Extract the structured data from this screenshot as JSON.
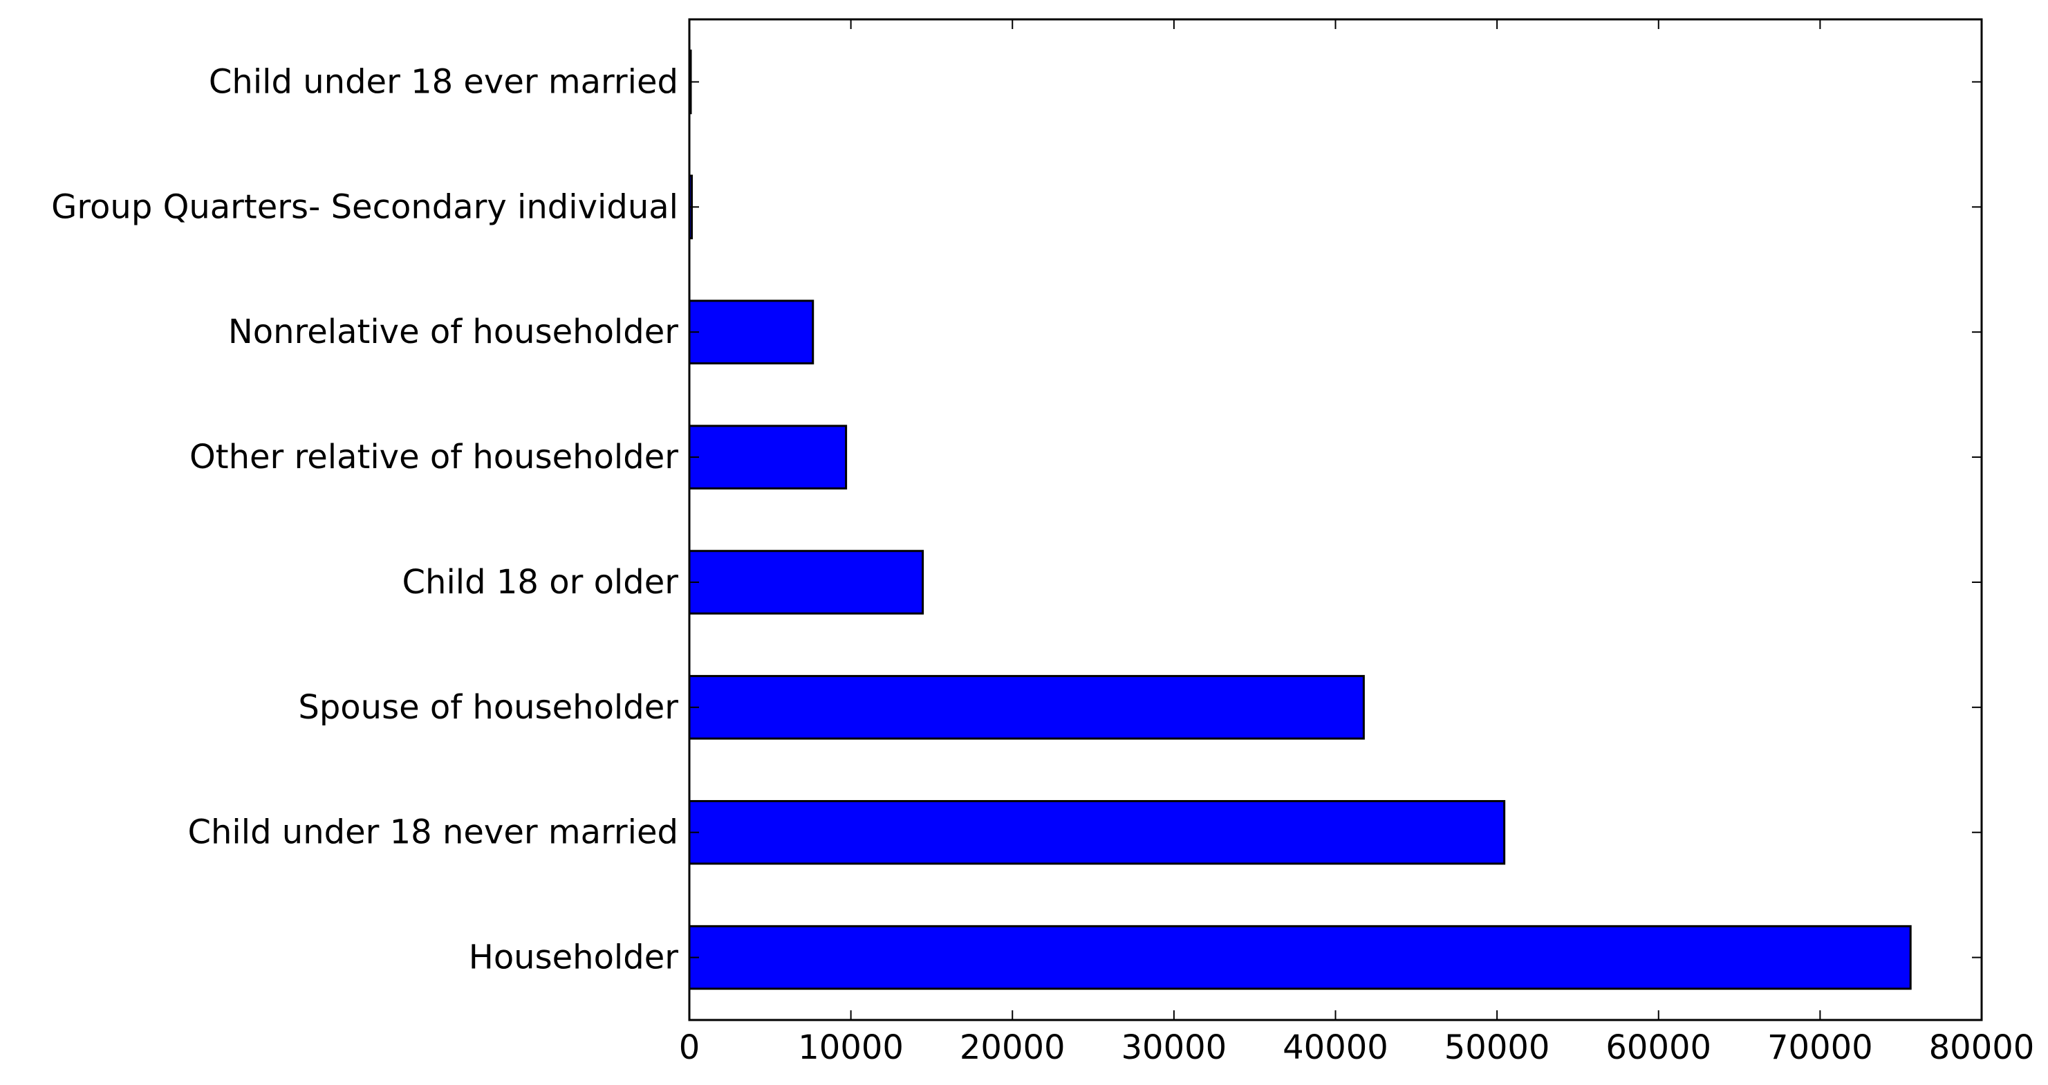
{
  "chart_data": {
    "type": "bar",
    "orientation": "horizontal",
    "title": "",
    "xlabel": "",
    "ylabel": "",
    "categories": [
      "Householder",
      "Child under 18 never married",
      "Spouse of householder",
      "Child 18 or older",
      "Other relative of householder",
      "Nonrelative of householder",
      "Group Quarters- Secondary individual",
      "Child under 18 ever married"
    ],
    "values": [
      75600,
      50450,
      41750,
      14450,
      9700,
      7650,
      150,
      50
    ],
    "xlim": [
      0,
      80000
    ],
    "xticks": [
      "0",
      "10000",
      "20000",
      "30000",
      "40000",
      "50000",
      "60000",
      "70000",
      "80000"
    ],
    "grid": false,
    "legend": "none",
    "bar_color": "#0000ff",
    "edge_color": "#000000"
  }
}
